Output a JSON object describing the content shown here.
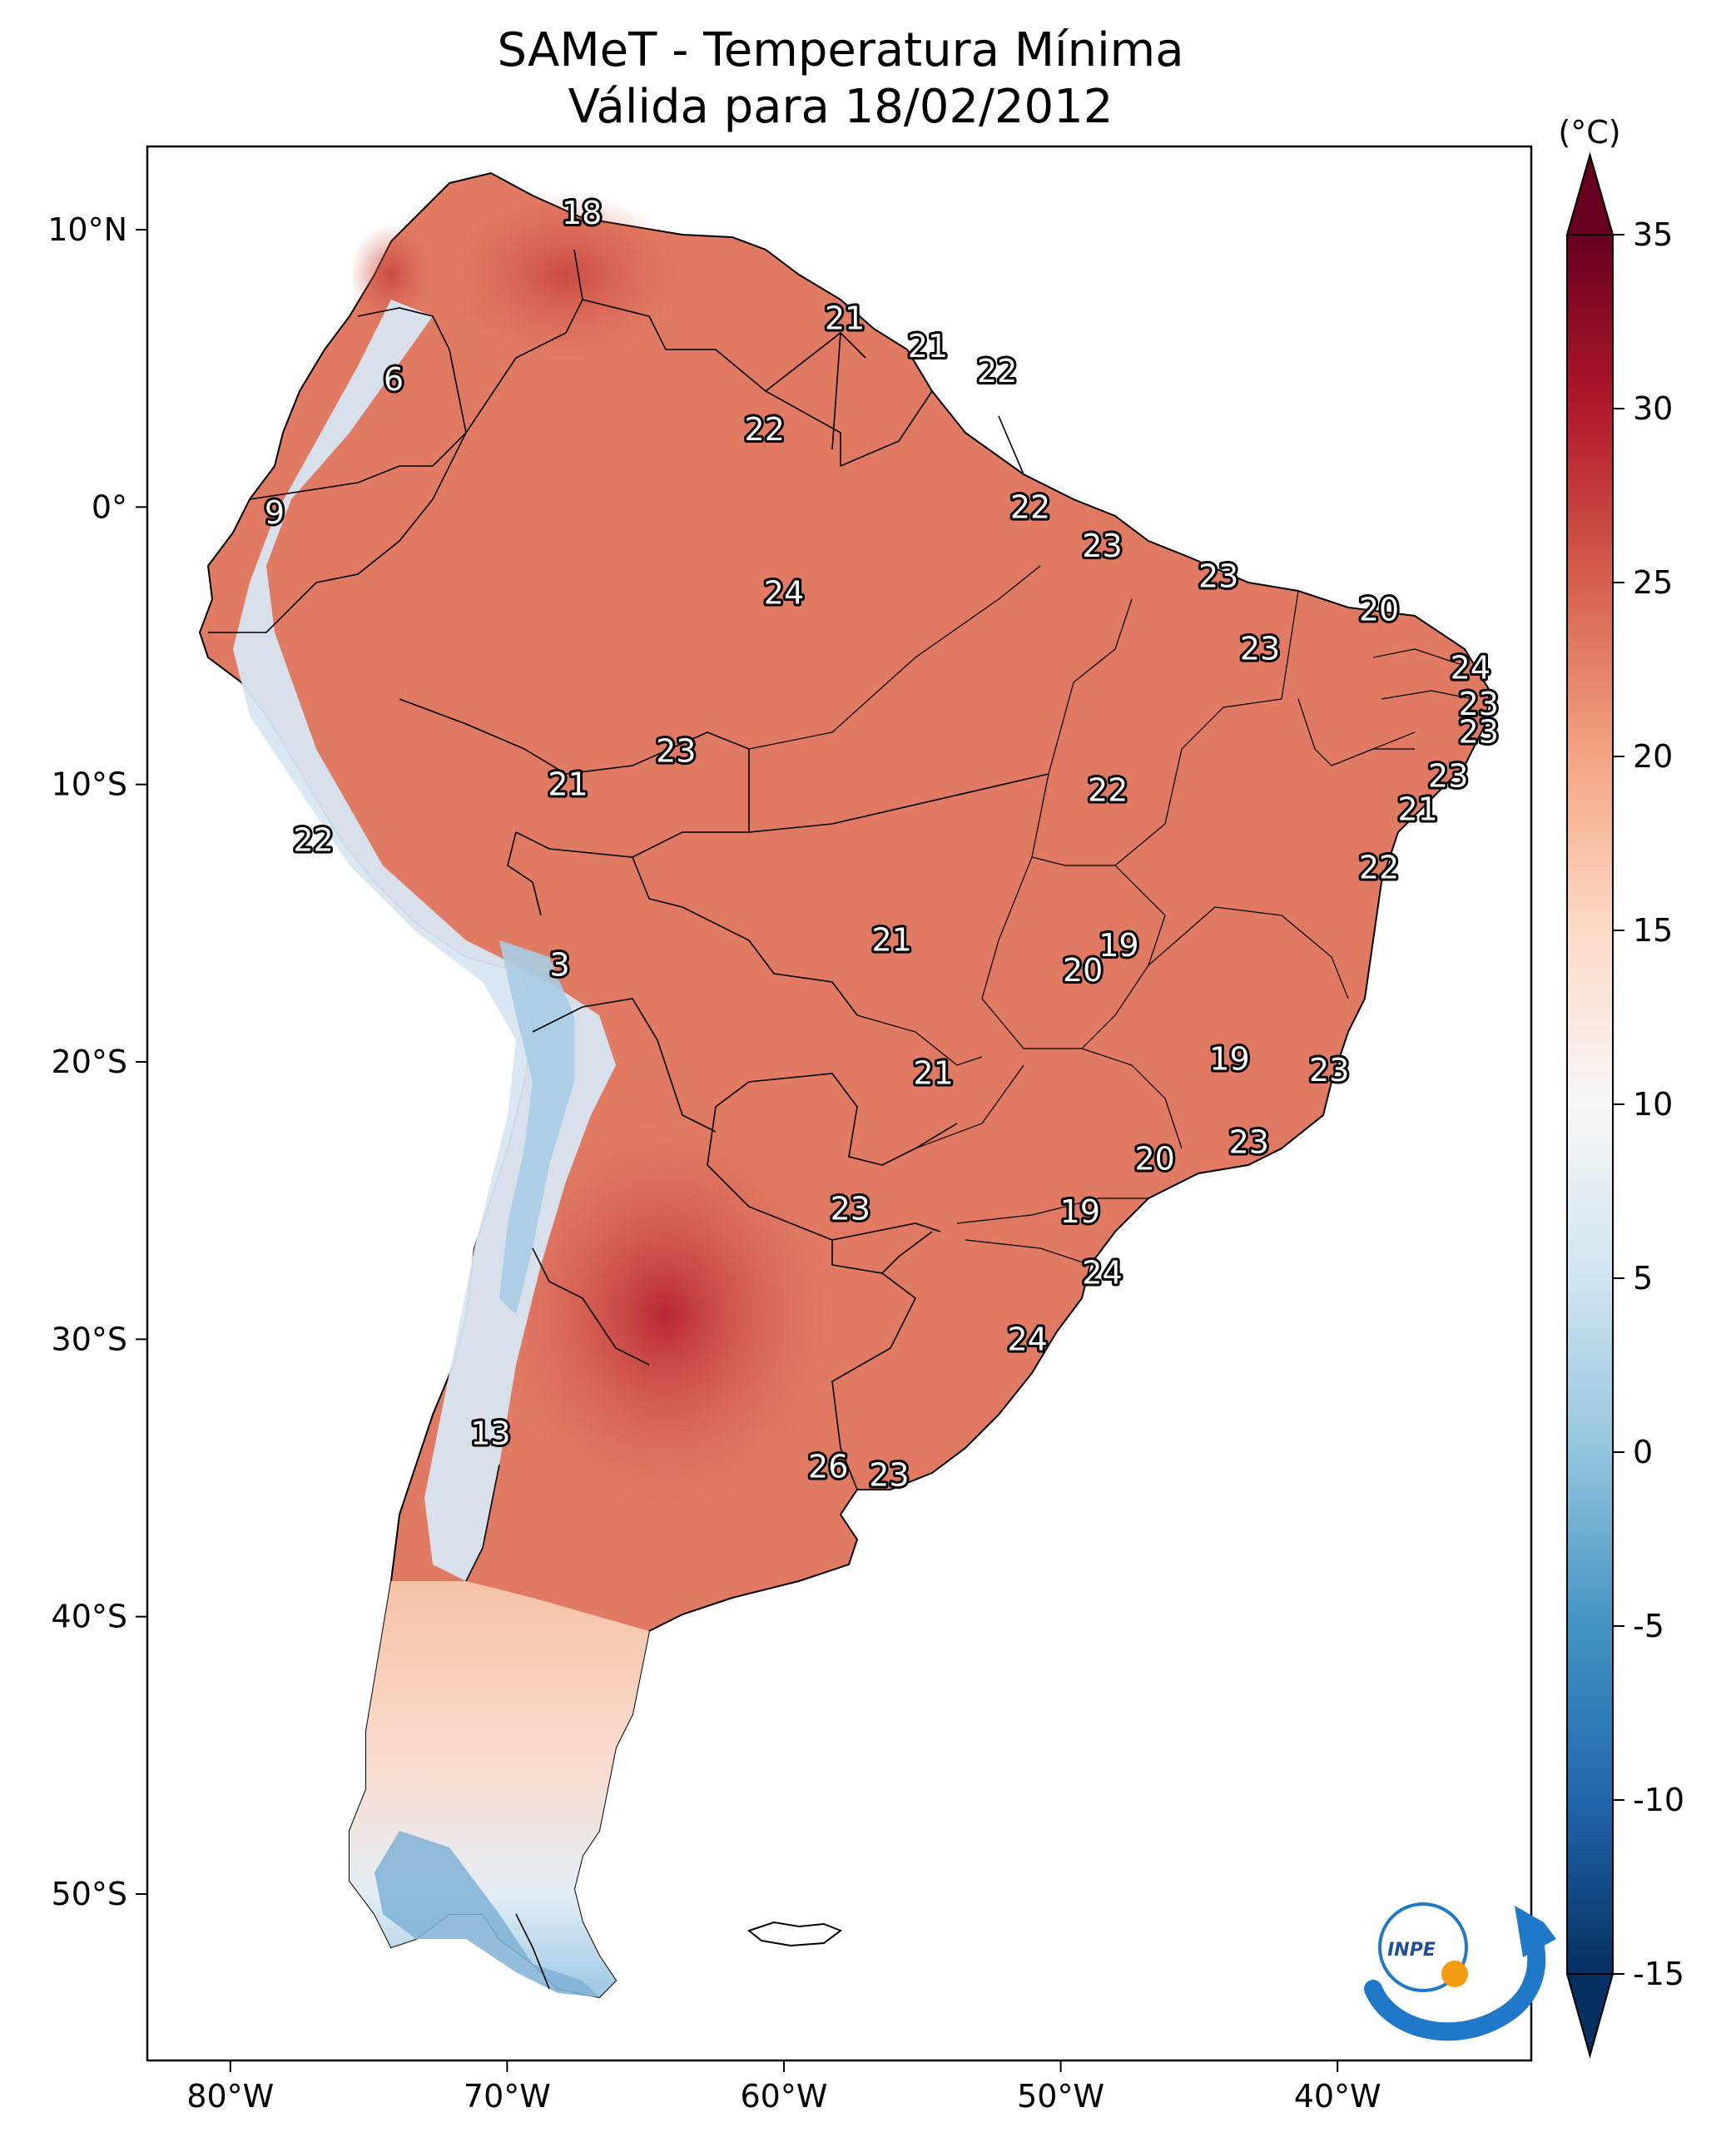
{
  "title": "SAMeT - Temperatura Mínima",
  "subtitle": "Válida para 18/02/2012",
  "colorbar": {
    "unit": "(°C)",
    "min": -15,
    "max": 35,
    "ticks": [
      "35",
      "30",
      "25",
      "20",
      "15",
      "10",
      "5",
      "0",
      "-5",
      "-10",
      "-15"
    ],
    "colormap": "RdBu_r",
    "colors": [
      "#053061",
      "#2166ac",
      "#4393c3",
      "#92c5de",
      "#d1e5f0",
      "#f7f7f7",
      "#fddbc7",
      "#f4a582",
      "#d6604d",
      "#b2182b",
      "#67001f"
    ]
  },
  "axes": {
    "lon_ticks": [
      "80°W",
      "70°W",
      "60°W",
      "50°W",
      "40°W"
    ],
    "lat_ticks": [
      "10°N",
      "0°",
      "10°S",
      "20°S",
      "30°S",
      "40°S",
      "50°S"
    ],
    "lon_range": [
      -83,
      -33
    ],
    "lat_range": [
      -56,
      13
    ]
  },
  "logo": {
    "text": "INPE"
  },
  "point_labels": [
    {
      "lon": -67.3,
      "lat": 10.6,
      "value": "18"
    },
    {
      "lon": -74.1,
      "lat": 4.6,
      "value": "6"
    },
    {
      "lon": -57.8,
      "lat": 6.8,
      "value": "21"
    },
    {
      "lon": -54.8,
      "lat": 5.8,
      "value": "21"
    },
    {
      "lon": -52.3,
      "lat": 4.9,
      "value": "22"
    },
    {
      "lon": -60.7,
      "lat": 2.8,
      "value": "22"
    },
    {
      "lon": -78.4,
      "lat": -0.2,
      "value": "9"
    },
    {
      "lon": -51.1,
      "lat": 0.0,
      "value": "22"
    },
    {
      "lon": -48.5,
      "lat": -1.4,
      "value": "23"
    },
    {
      "lon": -60.0,
      "lat": -3.1,
      "value": "24"
    },
    {
      "lon": -44.3,
      "lat": -2.5,
      "value": "23"
    },
    {
      "lon": -38.5,
      "lat": -3.7,
      "value": "20"
    },
    {
      "lon": -42.8,
      "lat": -5.1,
      "value": "23"
    },
    {
      "lon": -35.2,
      "lat": -5.8,
      "value": "24"
    },
    {
      "lon": -34.9,
      "lat": -7.1,
      "value": "23"
    },
    {
      "lon": -34.9,
      "lat": -8.1,
      "value": "23"
    },
    {
      "lon": -63.9,
      "lat": -8.8,
      "value": "23"
    },
    {
      "lon": -36.0,
      "lat": -9.7,
      "value": "23"
    },
    {
      "lon": -67.8,
      "lat": -10.0,
      "value": "21"
    },
    {
      "lon": -48.3,
      "lat": -10.2,
      "value": "22"
    },
    {
      "lon": -37.1,
      "lat": -10.9,
      "value": "21"
    },
    {
      "lon": -77.0,
      "lat": -12.0,
      "value": "22"
    },
    {
      "lon": -38.5,
      "lat": -13.0,
      "value": "22"
    },
    {
      "lon": -56.1,
      "lat": -15.6,
      "value": "21"
    },
    {
      "lon": -47.9,
      "lat": -15.8,
      "value": "19"
    },
    {
      "lon": -49.2,
      "lat": -16.7,
      "value": "20"
    },
    {
      "lon": -68.1,
      "lat": -16.5,
      "value": "3"
    },
    {
      "lon": -43.9,
      "lat": -19.9,
      "value": "19"
    },
    {
      "lon": -54.6,
      "lat": -20.4,
      "value": "21"
    },
    {
      "lon": -40.3,
      "lat": -20.3,
      "value": "23"
    },
    {
      "lon": -43.2,
      "lat": -22.9,
      "value": "23"
    },
    {
      "lon": -46.6,
      "lat": -23.5,
      "value": "20"
    },
    {
      "lon": -57.6,
      "lat": -25.3,
      "value": "23"
    },
    {
      "lon": -49.3,
      "lat": -25.4,
      "value": "19"
    },
    {
      "lon": -48.5,
      "lat": -27.6,
      "value": "24"
    },
    {
      "lon": -51.2,
      "lat": -30.0,
      "value": "24"
    },
    {
      "lon": -70.6,
      "lat": -33.4,
      "value": "13"
    },
    {
      "lon": -58.4,
      "lat": -34.6,
      "value": "26"
    },
    {
      "lon": -56.2,
      "lat": -34.9,
      "value": "23"
    }
  ]
}
